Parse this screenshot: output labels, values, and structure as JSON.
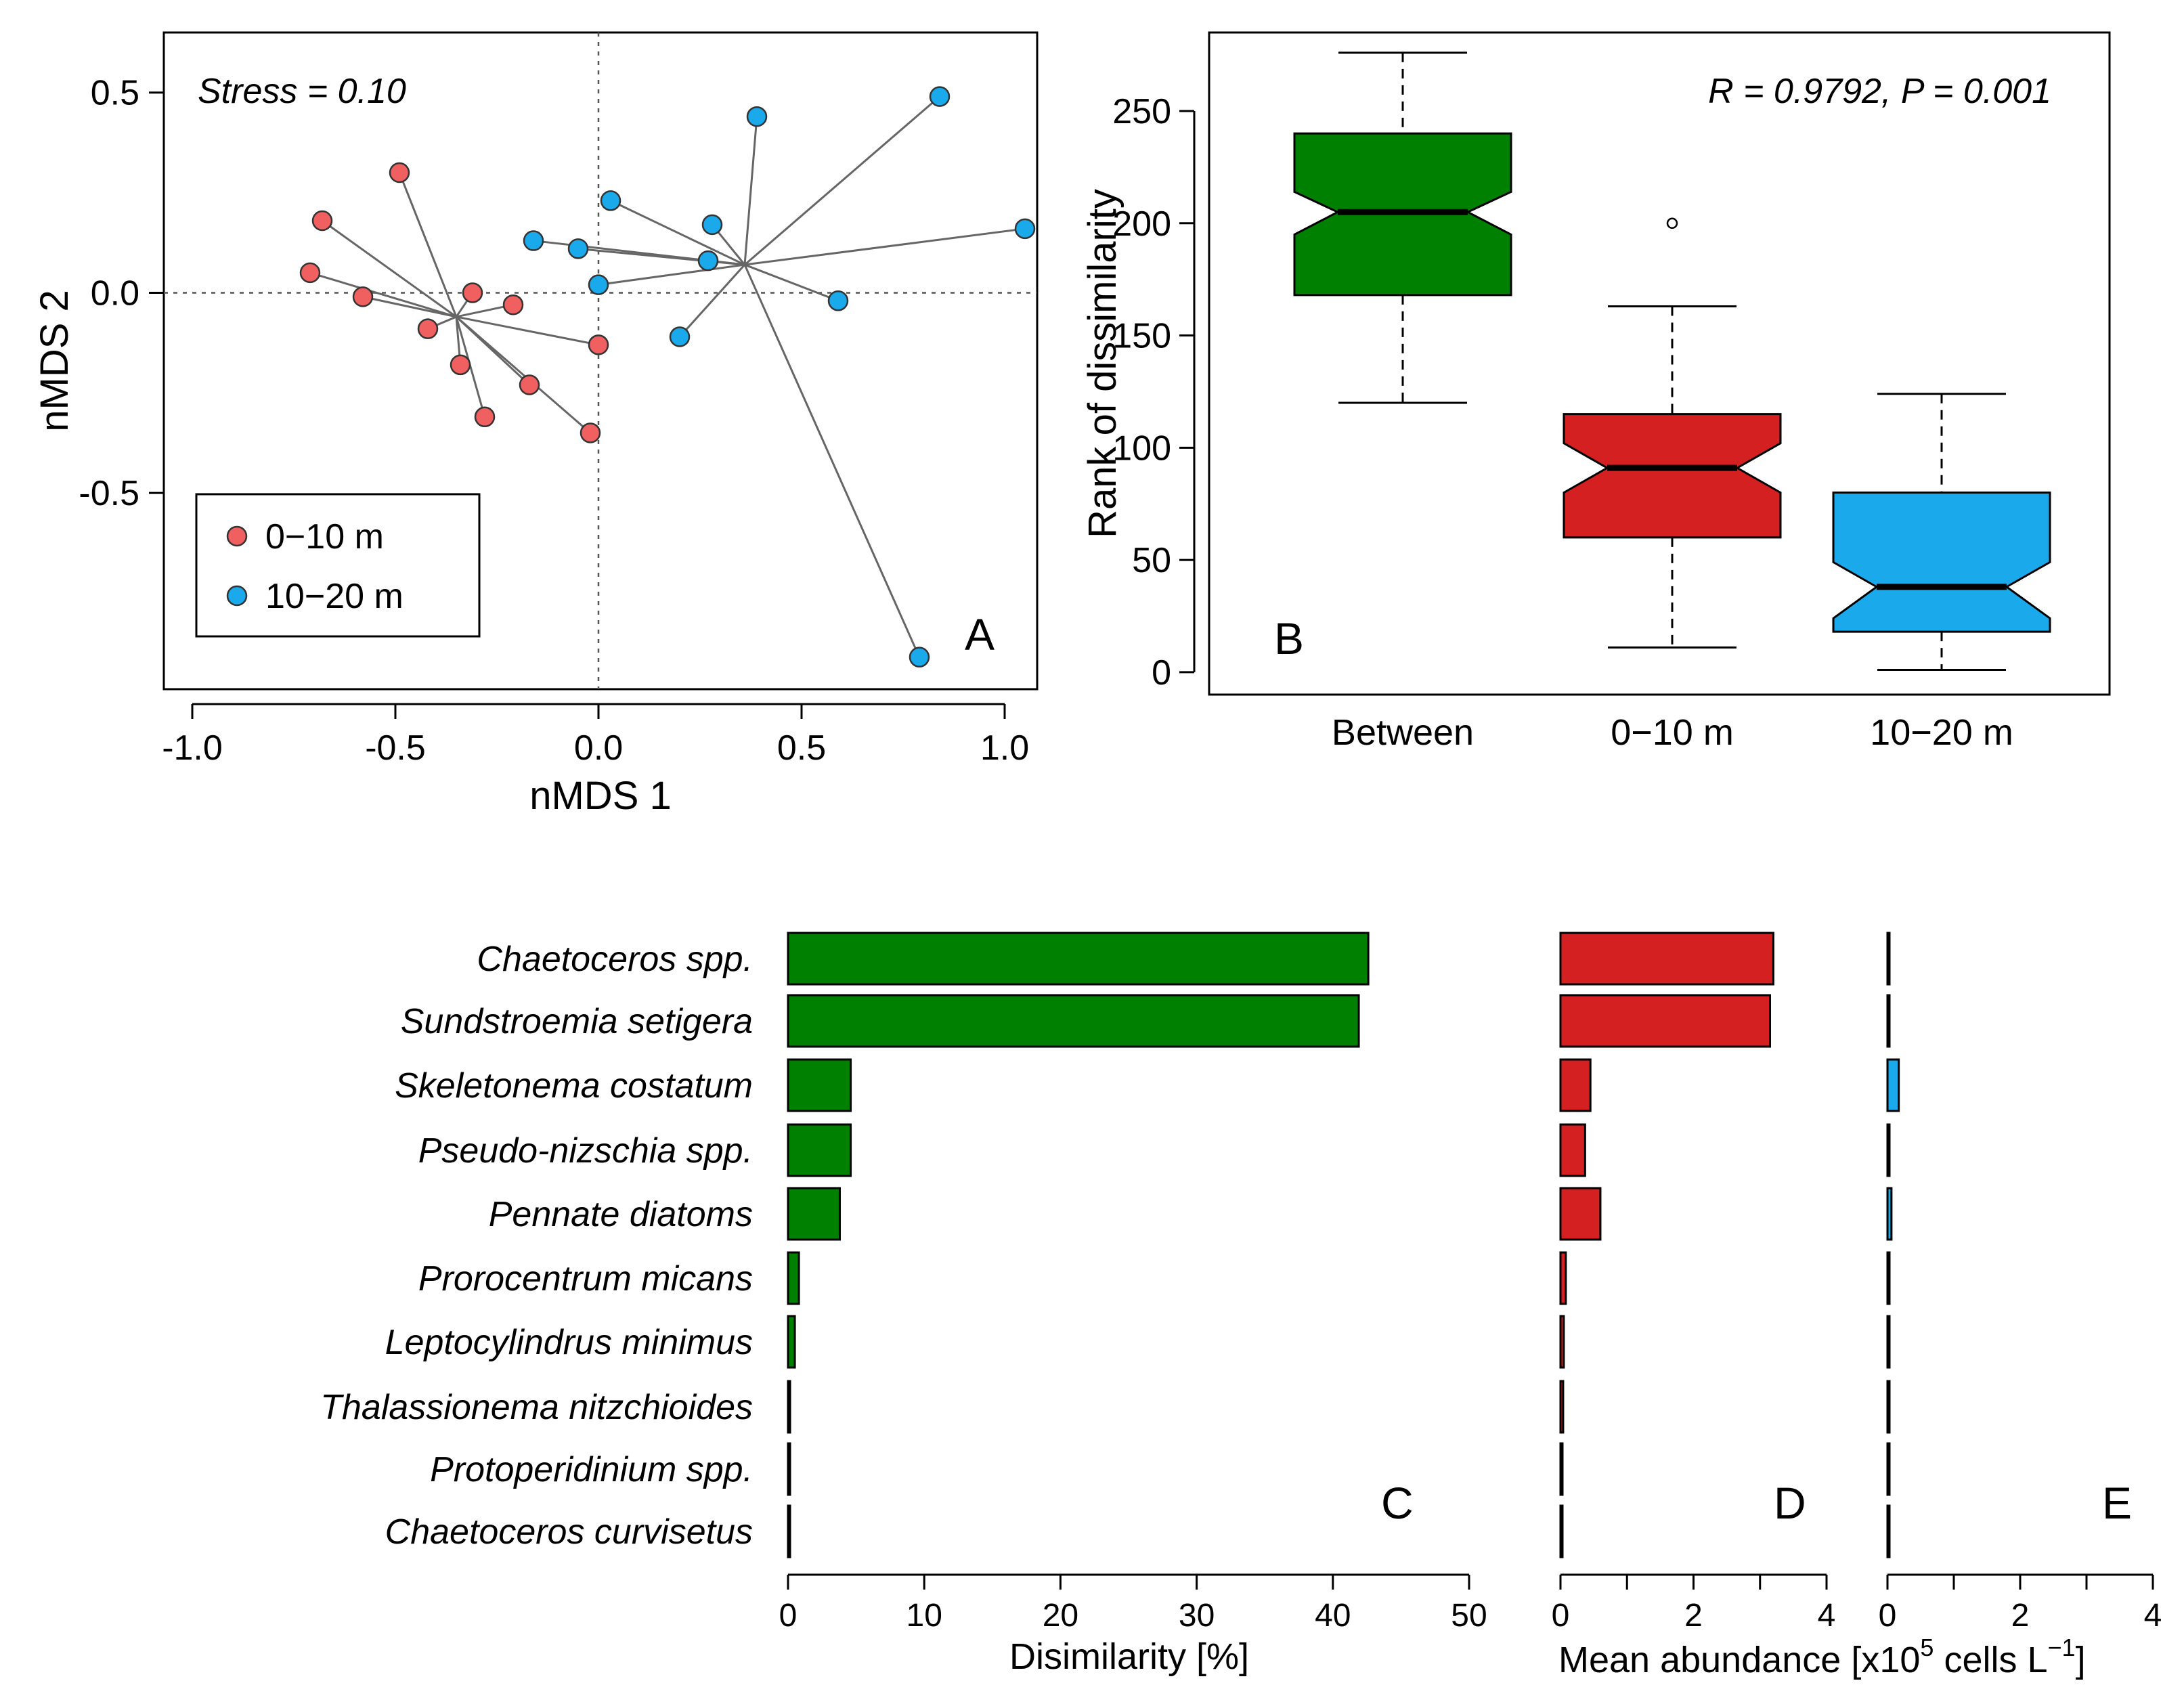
{
  "colors": {
    "shallow": "#f06060",
    "deep": "#1aaaec",
    "between": "#008000",
    "red_bar": "#d42020",
    "blue_bar": "#1aaaec"
  },
  "chart_data": [
    {
      "panel": "A",
      "type": "scatter",
      "xlabel": "nMDS 1",
      "ylabel": "nMDS 2",
      "xlim": [
        -1.07,
        1.08
      ],
      "ylim": [
        -0.99,
        0.65
      ],
      "xticks": [
        -1.0,
        -0.5,
        0.0,
        0.5,
        1.0
      ],
      "xtick_labels": [
        "-1.0",
        "-0.5",
        "0.0",
        "0.5",
        "1.0"
      ],
      "yticks": [
        -0.5,
        0.0,
        0.5
      ],
      "ytick_labels": [
        "-0.5",
        "0.0",
        "0.5"
      ],
      "annotation": "Stress = 0.10",
      "panel_label": "A",
      "legend": [
        "0−10 m",
        "10−20 m"
      ],
      "series": [
        {
          "name": "0−10 m",
          "centroid": [
            -0.35,
            -0.06
          ],
          "x": [
            -0.49,
            -0.68,
            -0.71,
            -0.58,
            -0.42,
            -0.34,
            -0.31,
            -0.21,
            -0.28,
            -0.17,
            -0.02,
            0.0
          ],
          "y": [
            0.3,
            0.18,
            0.05,
            -0.01,
            -0.09,
            -0.18,
            0.0,
            -0.03,
            -0.31,
            -0.23,
            -0.35,
            -0.13
          ]
        },
        {
          "name": "10−20 m",
          "centroid": [
            0.36,
            0.07
          ],
          "x": [
            -0.16,
            -0.05,
            0.0,
            0.03,
            0.27,
            0.28,
            0.39,
            0.2,
            0.59,
            0.84,
            1.05,
            0.79
          ],
          "y": [
            0.13,
            0.11,
            0.02,
            0.23,
            0.08,
            0.17,
            0.44,
            -0.11,
            -0.02,
            0.49,
            0.16,
            -0.91
          ]
        }
      ]
    },
    {
      "panel": "B",
      "type": "boxplot",
      "ylabel": "Rank of dissimilarity",
      "ylim": [
        -10,
        285
      ],
      "yticks": [
        0,
        50,
        100,
        150,
        200,
        250
      ],
      "ytick_labels": [
        "0",
        "50",
        "100",
        "150",
        "200",
        "250"
      ],
      "annotation": "R = 0.9792,  P = 0.001",
      "panel_label": "B",
      "categories": [
        "Between",
        "0−10 m",
        "10−20 m"
      ],
      "boxes": [
        {
          "name": "Between",
          "min": 120,
          "q1": 168,
          "median": 205,
          "q3": 240,
          "max": 276,
          "notch": [
            195,
            214
          ],
          "outliers": []
        },
        {
          "name": "0−10 m",
          "min": 11,
          "q1": 60,
          "median": 91,
          "q3": 115,
          "max": 163,
          "notch": [
            80,
            102
          ],
          "outliers": [
            200
          ]
        },
        {
          "name": "10−20 m",
          "min": 1,
          "q1": 18,
          "median": 38,
          "q3": 80,
          "max": 124,
          "notch": [
            24,
            49
          ],
          "outliers": []
        }
      ]
    },
    {
      "panel": "C",
      "type": "bar",
      "orientation": "horizontal",
      "xlabel": "Disimilarity [%]",
      "xlim": [
        0,
        50
      ],
      "xticks": [
        0,
        10,
        20,
        30,
        40,
        50
      ],
      "xtick_labels": [
        "0",
        "10",
        "20",
        "30",
        "40",
        "50"
      ],
      "panel_label": "C",
      "categories": [
        "Chaetoceros spp.",
        "Sundstroemia setigera",
        "Skeletonema costatum",
        "Pseudo-nizschia spp.",
        "Pennate diatoms",
        "Prorocentrum micans",
        "Leptocylindrus minimus",
        "Thalassionema nitzchioides",
        "Protoperidinium spp.",
        "Chaetoceros curvisetus"
      ],
      "values": [
        42.6,
        41.9,
        4.6,
        4.6,
        3.8,
        0.8,
        0.5,
        0.15,
        0.1,
        0.1
      ]
    },
    {
      "panel": "D",
      "type": "bar",
      "orientation": "horizontal",
      "series_name": "0−10 m",
      "xlim": [
        0,
        4
      ],
      "xticks": [
        0,
        1,
        2,
        3,
        4
      ],
      "xtick_labels": [
        "0",
        "",
        "2",
        "",
        "4"
      ],
      "panel_label": "D",
      "values": [
        3.2,
        3.15,
        0.45,
        0.37,
        0.6,
        0.08,
        0.05,
        0.04,
        0.02,
        0.02
      ]
    },
    {
      "panel": "E",
      "type": "bar",
      "orientation": "horizontal",
      "series_name": "10−20 m",
      "xlim": [
        0,
        4
      ],
      "xticks": [
        0,
        1,
        2,
        3,
        4
      ],
      "xtick_labels": [
        "0",
        "",
        "2",
        "",
        "4"
      ],
      "panel_label": "E",
      "values": [
        0.02,
        0.02,
        0.17,
        0.03,
        0.06,
        0.01,
        0.01,
        0.01,
        0.01,
        0.01
      ]
    }
  ],
  "shared_xlabel_DE": {
    "prefix": "Mean abundance [x10",
    "sup1": "5",
    "middle": " cells L",
    "sup2": "−1",
    "suffix": "]"
  }
}
